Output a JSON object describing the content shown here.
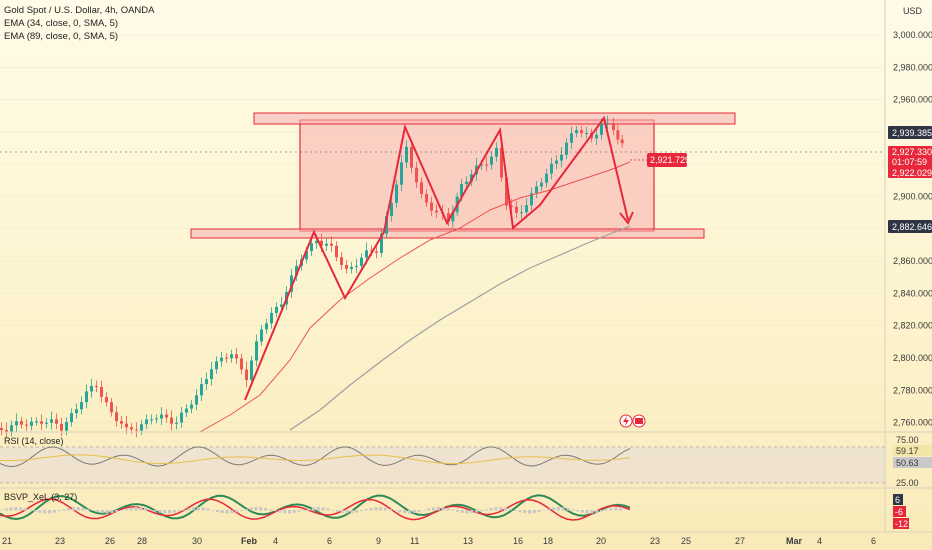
{
  "legend": {
    "title": "Gold Spot / U.S. Dollar, 4h, OANDA",
    "ema1": "EMA (34, close, 0, SMA, 5)",
    "ema2": "EMA (89, close, 0, SMA, 5)"
  },
  "currency": "USD",
  "price_axis": [
    "3,000.000",
    "2,980.000",
    "2,960.000",
    "2,940.000",
    "2,920.000",
    "2,900.000",
    "2,880.000",
    "2,860.000",
    "2,840.000",
    "2,820.000",
    "2,800.000",
    "2,780.000",
    "2,760.000"
  ],
  "price_tags": {
    "last": "2,939.385",
    "current": "2,927.330",
    "countdown": "01:07:59",
    "ema34": "2,922.029",
    "ema89": "2,882.646",
    "crosshair": "2,921.729"
  },
  "rsi": {
    "label": "RSI (14, close)",
    "levels": [
      "75.00",
      "25.00"
    ],
    "value1": "59.17",
    "value2": "50.63"
  },
  "bsvp": {
    "label": "BSVP_XeL (3, 27)",
    "values": [
      "6",
      "-6",
      "-12"
    ]
  },
  "time_axis": [
    "21",
    "23",
    "26",
    "28",
    "30",
    "Feb",
    "4",
    "6",
    "9",
    "11",
    "13",
    "16",
    "18",
    "20",
    "23",
    "25",
    "27",
    "Mar",
    "4",
    "6"
  ],
  "colors": {
    "up": "#26a69a",
    "down": "#ef5350",
    "pattern": "#e8283a",
    "zone": "#f7b5b5",
    "ema34": "#ef5350",
    "ema89": "#9e9e9e"
  }
}
